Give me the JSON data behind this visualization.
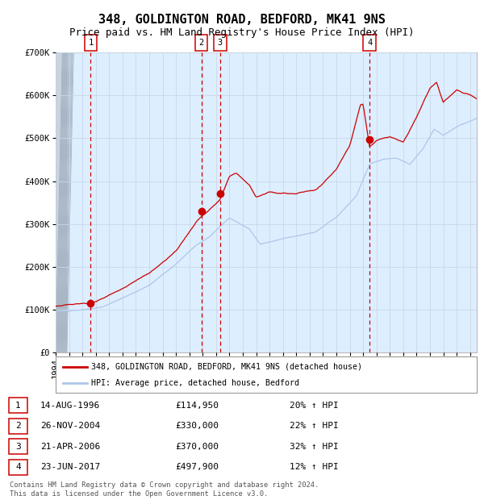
{
  "title": "348, GOLDINGTON ROAD, BEDFORD, MK41 9NS",
  "subtitle": "Price paid vs. HM Land Registry's House Price Index (HPI)",
  "ylim": [
    0,
    700000
  ],
  "yticks": [
    0,
    100000,
    200000,
    300000,
    400000,
    500000,
    600000,
    700000
  ],
  "ytick_labels": [
    "£0",
    "£100K",
    "£200K",
    "£300K",
    "£400K",
    "£500K",
    "£600K",
    "£700K"
  ],
  "xlim_start": 1994.0,
  "xlim_end": 2025.5,
  "xticks": [
    1994,
    1995,
    1996,
    1997,
    1998,
    1999,
    2000,
    2001,
    2002,
    2003,
    2004,
    2005,
    2006,
    2007,
    2008,
    2009,
    2010,
    2011,
    2012,
    2013,
    2014,
    2015,
    2016,
    2017,
    2018,
    2019,
    2020,
    2021,
    2022,
    2023,
    2024,
    2025
  ],
  "hpi_color": "#aec6e8",
  "price_color": "#cc0000",
  "sale_dot_color": "#cc0000",
  "vline_color": "#cc0000",
  "box_edge_color": "#cc0000",
  "grid_color": "#c8d8e8",
  "bg_color": "#ddeeff",
  "hatch_color": "#b8c8d8",
  "sales": [
    {
      "num": 1,
      "date": "14-AUG-1996",
      "year": 1996.62,
      "price": 114950,
      "pct": "20%",
      "dir": "↑"
    },
    {
      "num": 2,
      "date": "26-NOV-2004",
      "year": 2004.9,
      "price": 330000,
      "pct": "22%",
      "dir": "↑"
    },
    {
      "num": 3,
      "date": "21-APR-2006",
      "year": 2006.3,
      "price": 370000,
      "pct": "32%",
      "dir": "↑"
    },
    {
      "num": 4,
      "date": "23-JUN-2017",
      "year": 2017.48,
      "price": 497900,
      "pct": "12%",
      "dir": "↑"
    }
  ],
  "legend_label_red": "348, GOLDINGTON ROAD, BEDFORD, MK41 9NS (detached house)",
  "legend_label_blue": "HPI: Average price, detached house, Bedford",
  "footer": "Contains HM Land Registry data © Crown copyright and database right 2024.\nThis data is licensed under the Open Government Licence v3.0.",
  "title_fontsize": 11,
  "subtitle_fontsize": 9,
  "tick_fontsize": 7.5
}
